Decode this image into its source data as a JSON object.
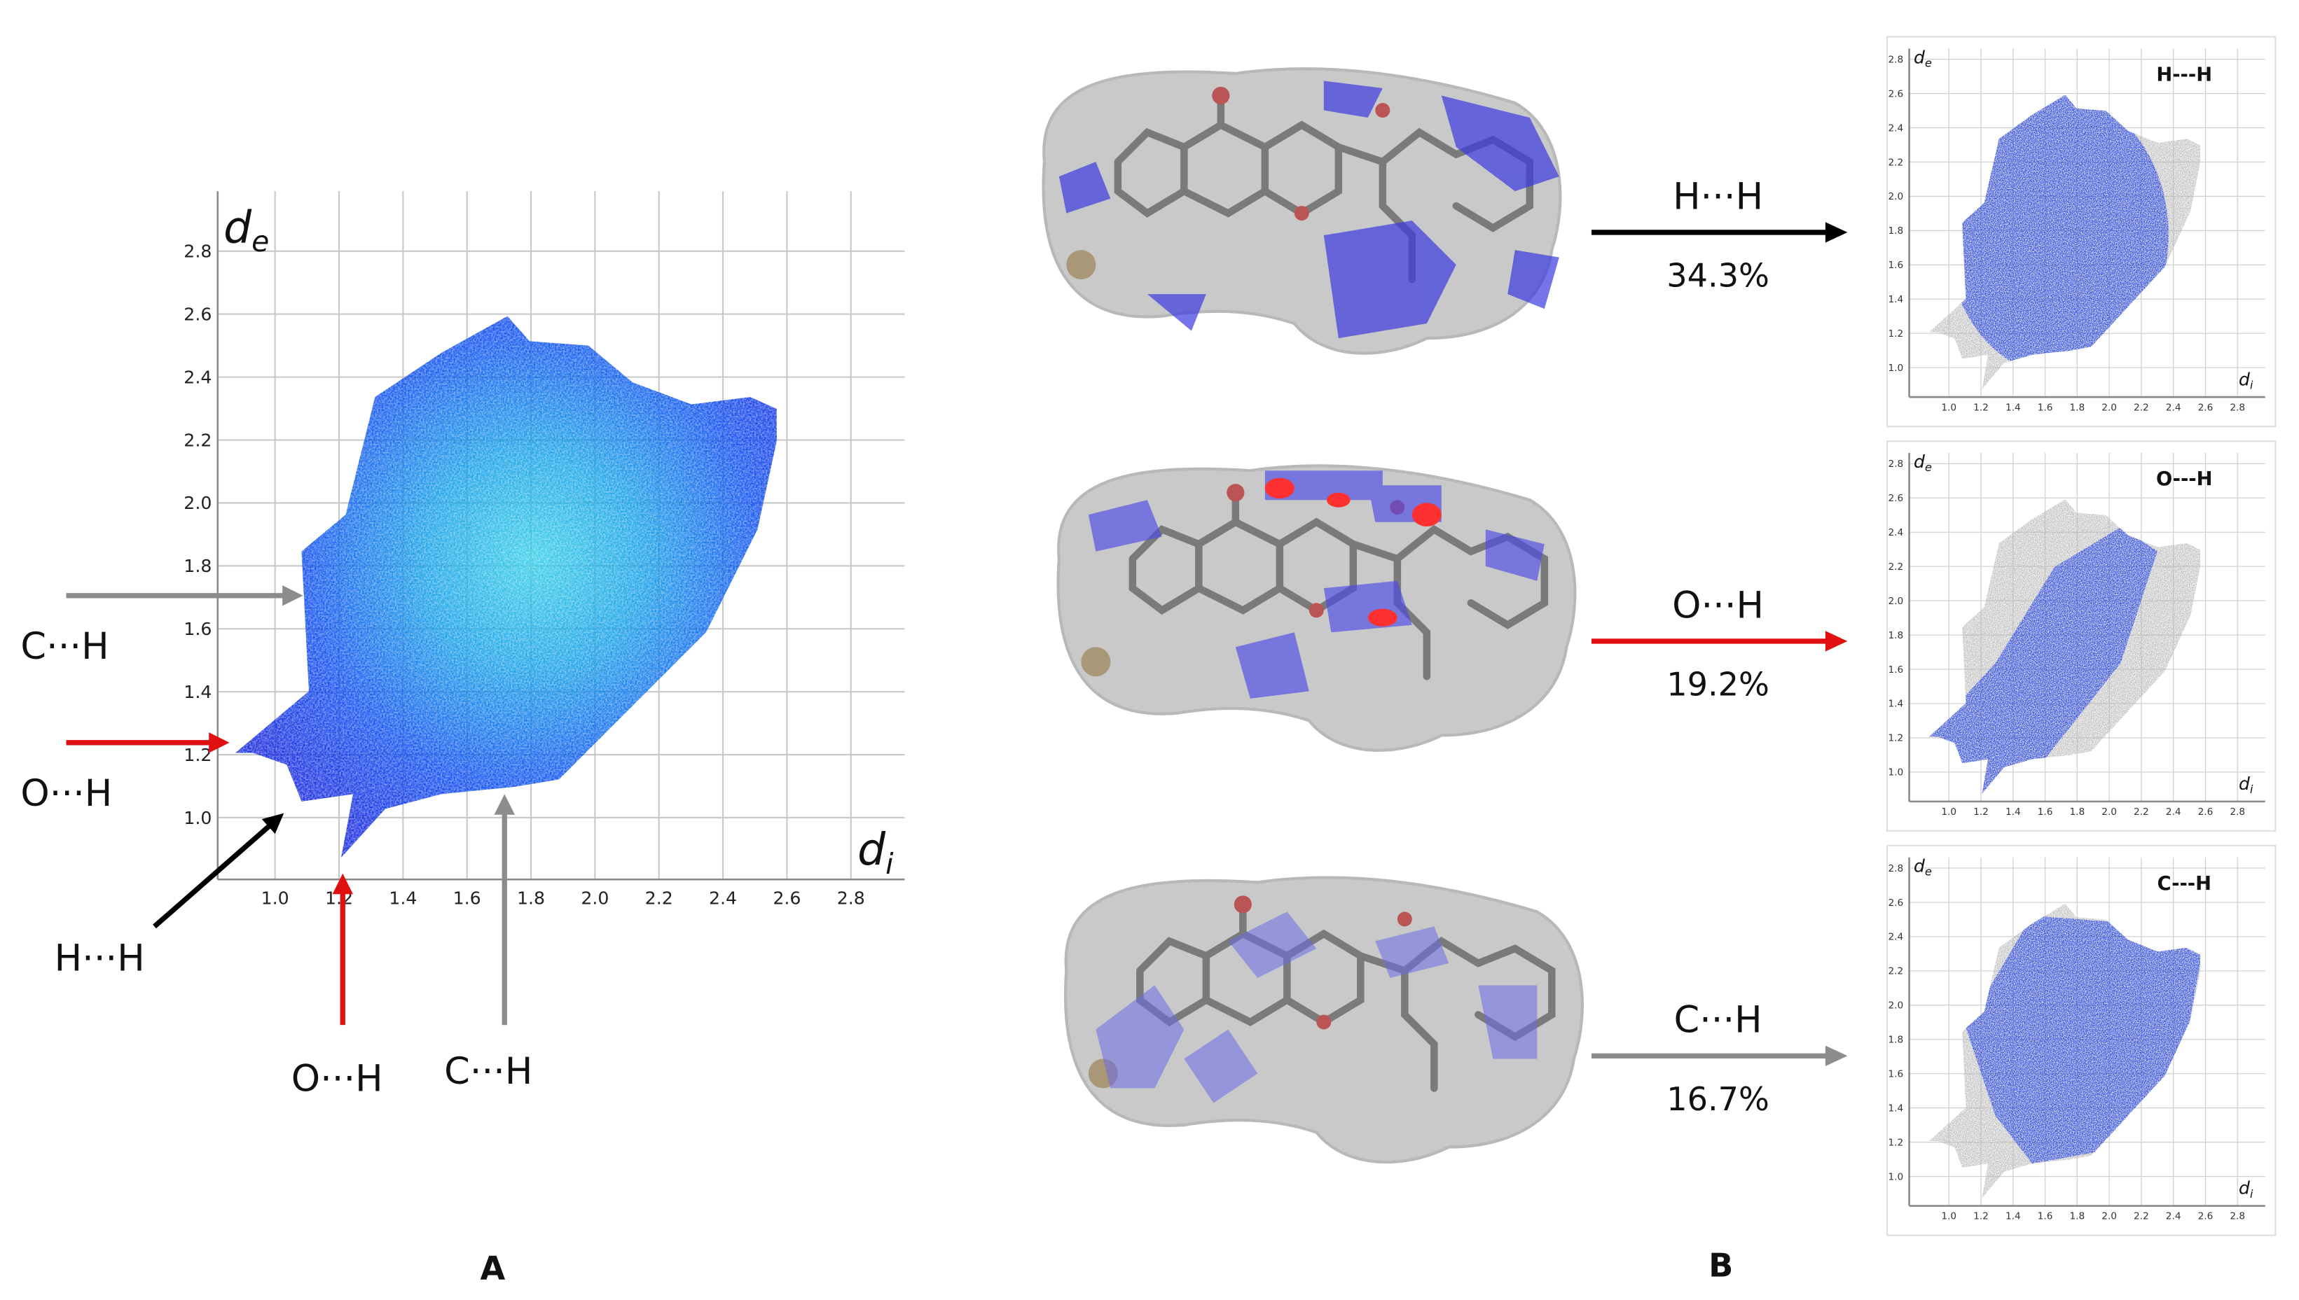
{
  "figure": {
    "panel_a": {
      "label": "A",
      "y_axis": {
        "symbol": "d",
        "subscript": "e"
      },
      "x_axis": {
        "symbol": "d",
        "subscript": "i"
      },
      "xticks": [
        "1.0",
        "1.2",
        "1.4",
        "1.6",
        "1.8",
        "2.0",
        "2.2",
        "2.4",
        "2.6",
        "2.8"
      ],
      "yticks": [
        "1.0",
        "1.2",
        "1.4",
        "1.6",
        "1.8",
        "2.0",
        "2.2",
        "2.4",
        "2.6",
        "2.8"
      ],
      "annotations": [
        "C···H",
        "O···H",
        "H···H",
        "O···H",
        "C···H"
      ]
    },
    "panel_b": {
      "label": "B",
      "rows": [
        {
          "contact": "H···H",
          "percentage": "34.3%",
          "plot_title": "H---H"
        },
        {
          "contact": "O···H",
          "percentage": "19.2%",
          "plot_title": "O---H"
        },
        {
          "contact": "C···H",
          "percentage": "16.7%",
          "plot_title": "C---H"
        }
      ]
    }
  }
}
